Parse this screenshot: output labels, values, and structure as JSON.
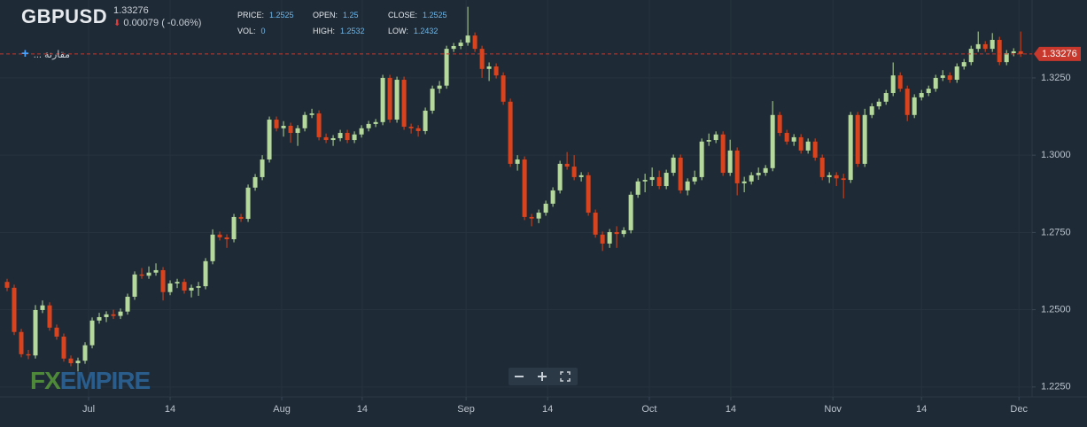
{
  "header": {
    "symbol": "GBPUSD",
    "price": "1.33276",
    "change": "0.00079 ( -0.06%)",
    "stats": [
      {
        "label": "PRICE:",
        "value": "1.2525"
      },
      {
        "label": "VOL:",
        "value": "0"
      },
      {
        "label": "OPEN:",
        "value": "1.25"
      },
      {
        "label": "HIGH:",
        "value": "1.2532"
      },
      {
        "label": "CLOSE:",
        "value": "1.2525"
      },
      {
        "label": "LOW:",
        "value": "1.2432"
      }
    ],
    "compare": "مقارنة ...",
    "logo": {
      "fx": "FX",
      "empire": "EMPIRE"
    }
  },
  "chart_data": {
    "type": "candlestick",
    "up_color": "#b5d99c",
    "down_color": "#d9441f",
    "grid": true,
    "last_price": 1.33276,
    "last_price_label": "1.33276",
    "last_price_color": "#c8382c",
    "ylim": [
      1.2218,
      1.3502
    ],
    "yticks": [
      {
        "value": 1.225,
        "label": "1.2250"
      },
      {
        "value": 1.25,
        "label": "1.2500"
      },
      {
        "value": 1.275,
        "label": "1.2750"
      },
      {
        "value": 1.3,
        "label": "1.3000"
      },
      {
        "value": 1.325,
        "label": "1.3250"
      }
    ],
    "xlim": [
      -1,
      144.6
    ],
    "xticks": [
      {
        "value": 11.5,
        "label": "Jul"
      },
      {
        "value": 23,
        "label": "14"
      },
      {
        "value": 38.75,
        "label": "Aug"
      },
      {
        "value": 50.1,
        "label": "14"
      },
      {
        "value": 64.75,
        "label": "Sep"
      },
      {
        "value": 76.25,
        "label": "14"
      },
      {
        "value": 90.6,
        "label": "Oct"
      },
      {
        "value": 102.1,
        "label": "14"
      },
      {
        "value": 116.5,
        "label": "Nov"
      },
      {
        "value": 129,
        "label": "14"
      },
      {
        "value": 142.75,
        "label": "Dec"
      }
    ],
    "candles": [
      [
        1.259,
        1.26,
        1.256,
        1.2571
      ],
      [
        1.2571,
        1.2581,
        1.2418,
        1.2428
      ],
      [
        1.2428,
        1.2438,
        1.2346,
        1.2356
      ],
      [
        1.2356,
        1.237,
        1.234,
        1.2352
      ],
      [
        1.2352,
        1.2515,
        1.2342,
        1.2499
      ],
      [
        1.2499,
        1.253,
        1.2489,
        1.2514
      ],
      [
        1.2514,
        1.2524,
        1.2432,
        1.2442
      ],
      [
        1.2442,
        1.2452,
        1.2403,
        1.2413
      ],
      [
        1.2413,
        1.2423,
        1.2332,
        1.2342
      ],
      [
        1.2342,
        1.2352,
        1.2317,
        1.2327
      ],
      [
        1.2327,
        1.2345,
        1.23,
        1.2335
      ],
      [
        1.2335,
        1.2395,
        1.2325,
        1.2385
      ],
      [
        1.2385,
        1.2475,
        1.2375,
        1.2465
      ],
      [
        1.2465,
        1.249,
        1.2455,
        1.2476
      ],
      [
        1.2476,
        1.2495,
        1.246,
        1.2485
      ],
      [
        1.2485,
        1.25,
        1.247,
        1.248
      ],
      [
        1.248,
        1.2504,
        1.247,
        1.2494
      ],
      [
        1.2494,
        1.2552,
        1.2484,
        1.2542
      ],
      [
        1.2542,
        1.2624,
        1.2532,
        1.2614
      ],
      [
        1.2614,
        1.2635,
        1.26,
        1.261
      ],
      [
        1.261,
        1.264,
        1.26,
        1.262
      ],
      [
        1.262,
        1.265,
        1.261,
        1.2628
      ],
      [
        1.2628,
        1.2638,
        1.253,
        1.2557
      ],
      [
        1.2557,
        1.2595,
        1.2547,
        1.2585
      ],
      [
        1.2585,
        1.26,
        1.257,
        1.259
      ],
      [
        1.259,
        1.26,
        1.2552,
        1.2562
      ],
      [
        1.2562,
        1.2581,
        1.254,
        1.2571
      ],
      [
        1.2571,
        1.259,
        1.2545,
        1.2576
      ],
      [
        1.2576,
        1.2667,
        1.2566,
        1.2657
      ],
      [
        1.2657,
        1.276,
        1.2647,
        1.2743
      ],
      [
        1.2743,
        1.2753,
        1.2724,
        1.2734
      ],
      [
        1.2734,
        1.2744,
        1.27,
        1.2728
      ],
      [
        1.2728,
        1.281,
        1.2718,
        1.28
      ],
      [
        1.28,
        1.281,
        1.2784,
        1.2794
      ],
      [
        1.2794,
        1.2905,
        1.2784,
        1.2895
      ],
      [
        1.2895,
        1.2939,
        1.2885,
        1.2929
      ],
      [
        1.2929,
        1.3,
        1.2919,
        1.2986
      ],
      [
        1.2986,
        1.3125,
        1.2976,
        1.3115
      ],
      [
        1.3115,
        1.3125,
        1.3077,
        1.3087
      ],
      [
        1.3087,
        1.311,
        1.306,
        1.3095
      ],
      [
        1.3095,
        1.3105,
        1.304,
        1.3072
      ],
      [
        1.3072,
        1.3097,
        1.303,
        1.3087
      ],
      [
        1.3087,
        1.314,
        1.3077,
        1.313
      ],
      [
        1.313,
        1.315,
        1.312,
        1.3135
      ],
      [
        1.3135,
        1.3145,
        1.3048,
        1.3058
      ],
      [
        1.3058,
        1.307,
        1.3039,
        1.3049
      ],
      [
        1.3049,
        1.3065,
        1.303,
        1.3055
      ],
      [
        1.3055,
        1.3082,
        1.3045,
        1.3072
      ],
      [
        1.3072,
        1.3082,
        1.3039,
        1.3049
      ],
      [
        1.3049,
        1.3077,
        1.3039,
        1.3067
      ],
      [
        1.3067,
        1.3097,
        1.3057,
        1.3087
      ],
      [
        1.3087,
        1.3111,
        1.3077,
        1.3101
      ],
      [
        1.3101,
        1.3117,
        1.3091,
        1.3107
      ],
      [
        1.3107,
        1.326,
        1.3097,
        1.325
      ],
      [
        1.325,
        1.326,
        1.3105,
        1.3115
      ],
      [
        1.3115,
        1.3254,
        1.3105,
        1.3244
      ],
      [
        1.3244,
        1.3254,
        1.3082,
        1.3092
      ],
      [
        1.3092,
        1.3102,
        1.307,
        1.3087
      ],
      [
        1.3087,
        1.3097,
        1.306,
        1.3078
      ],
      [
        1.3078,
        1.3154,
        1.3068,
        1.3144
      ],
      [
        1.3144,
        1.3225,
        1.3134,
        1.3215
      ],
      [
        1.3215,
        1.324,
        1.32,
        1.3225
      ],
      [
        1.3225,
        1.3354,
        1.3215,
        1.3344
      ],
      [
        1.3344,
        1.3363,
        1.3334,
        1.3353
      ],
      [
        1.3353,
        1.3374,
        1.3343,
        1.3364
      ],
      [
        1.3364,
        1.348,
        1.3354,
        1.3387
      ],
      [
        1.3387,
        1.3397,
        1.3334,
        1.3344
      ],
      [
        1.3344,
        1.3354,
        1.325,
        1.3279
      ],
      [
        1.3279,
        1.33,
        1.324,
        1.3287
      ],
      [
        1.3287,
        1.3297,
        1.3248,
        1.3258
      ],
      [
        1.3258,
        1.3268,
        1.3163,
        1.3173
      ],
      [
        1.3173,
        1.3183,
        1.2962,
        1.2972
      ],
      [
        1.2972,
        1.3,
        1.295,
        1.2986
      ],
      [
        1.2986,
        1.2996,
        1.279,
        1.28
      ],
      [
        1.28,
        1.281,
        1.277,
        1.2795
      ],
      [
        1.2795,
        1.2824,
        1.278,
        1.2814
      ],
      [
        1.2814,
        1.2853,
        1.2804,
        1.2843
      ],
      [
        1.2843,
        1.2896,
        1.2833,
        1.2886
      ],
      [
        1.2886,
        1.2982,
        1.2876,
        1.2972
      ],
      [
        1.2972,
        1.301,
        1.2953,
        1.2963
      ],
      [
        1.2963,
        1.3,
        1.2919,
        1.2929
      ],
      [
        1.2929,
        1.2945,
        1.2915,
        1.2935
      ],
      [
        1.2935,
        1.2945,
        1.2804,
        1.2814
      ],
      [
        1.2814,
        1.2824,
        1.2733,
        1.2743
      ],
      [
        1.2743,
        1.2753,
        1.269,
        1.2714
      ],
      [
        1.2714,
        1.2761,
        1.27,
        1.2751
      ],
      [
        1.2751,
        1.277,
        1.27,
        1.2745
      ],
      [
        1.2745,
        1.2767,
        1.2735,
        1.2757
      ],
      [
        1.2757,
        1.2882,
        1.2747,
        1.2872
      ],
      [
        1.2872,
        1.2925,
        1.2862,
        1.2915
      ],
      [
        1.2915,
        1.294,
        1.288,
        1.292
      ],
      [
        1.292,
        1.296,
        1.29,
        1.2929
      ],
      [
        1.2929,
        1.295,
        1.289,
        1.29
      ],
      [
        1.29,
        1.2953,
        1.289,
        1.2943
      ],
      [
        1.2943,
        1.3002,
        1.2933,
        1.2992
      ],
      [
        1.2992,
        1.3002,
        1.2876,
        1.2886
      ],
      [
        1.2886,
        1.2925,
        1.287,
        1.2915
      ],
      [
        1.2915,
        1.295,
        1.2905,
        1.2929
      ],
      [
        1.2929,
        1.3054,
        1.2919,
        1.3044
      ],
      [
        1.3044,
        1.307,
        1.303,
        1.3049
      ],
      [
        1.3049,
        1.3077,
        1.3039,
        1.3067
      ],
      [
        1.3067,
        1.3077,
        1.2933,
        1.2943
      ],
      [
        1.2943,
        1.305,
        1.2933,
        1.3015
      ],
      [
        1.3015,
        1.3025,
        1.287,
        1.2909
      ],
      [
        1.2909,
        1.293,
        1.288,
        1.2915
      ],
      [
        1.2915,
        1.2945,
        1.2905,
        1.2935
      ],
      [
        1.2935,
        1.296,
        1.292,
        1.2943
      ],
      [
        1.2943,
        1.2968,
        1.2933,
        1.2958
      ],
      [
        1.2958,
        1.3175,
        1.2948,
        1.313
      ],
      [
        1.313,
        1.314,
        1.3062,
        1.3072
      ],
      [
        1.3072,
        1.3082,
        1.3034,
        1.3044
      ],
      [
        1.3044,
        1.3068,
        1.303,
        1.3058
      ],
      [
        1.3058,
        1.3068,
        1.3005,
        1.3015
      ],
      [
        1.3015,
        1.3054,
        1.3005,
        1.3044
      ],
      [
        1.3044,
        1.3054,
        1.2982,
        1.2992
      ],
      [
        1.2992,
        1.3002,
        1.2919,
        1.2929
      ],
      [
        1.2929,
        1.2945,
        1.291,
        1.2935
      ],
      [
        1.2935,
        1.2945,
        1.29,
        1.2925
      ],
      [
        1.2925,
        1.294,
        1.286,
        1.292
      ],
      [
        1.292,
        1.314,
        1.291,
        1.313
      ],
      [
        1.313,
        1.314,
        1.2962,
        1.2972
      ],
      [
        1.2972,
        1.315,
        1.2962,
        1.313
      ],
      [
        1.313,
        1.3168,
        1.312,
        1.3158
      ],
      [
        1.3158,
        1.3183,
        1.3148,
        1.3173
      ],
      [
        1.3173,
        1.3211,
        1.3163,
        1.3201
      ],
      [
        1.3201,
        1.33,
        1.3191,
        1.3258
      ],
      [
        1.3258,
        1.3268,
        1.3205,
        1.3215
      ],
      [
        1.3215,
        1.3225,
        1.311,
        1.313
      ],
      [
        1.313,
        1.3197,
        1.312,
        1.3187
      ],
      [
        1.3187,
        1.3211,
        1.3177,
        1.3201
      ],
      [
        1.3201,
        1.3225,
        1.3191,
        1.3215
      ],
      [
        1.3215,
        1.326,
        1.3205,
        1.325
      ],
      [
        1.325,
        1.3275,
        1.324,
        1.3258
      ],
      [
        1.3258,
        1.3268,
        1.3234,
        1.3244
      ],
      [
        1.3244,
        1.3297,
        1.3234,
        1.3287
      ],
      [
        1.3287,
        1.3311,
        1.3277,
        1.3301
      ],
      [
        1.3301,
        1.3354,
        1.3291,
        1.3344
      ],
      [
        1.3344,
        1.34,
        1.3334,
        1.3359
      ],
      [
        1.3359,
        1.3369,
        1.3334,
        1.3344
      ],
      [
        1.3344,
        1.3395,
        1.3334,
        1.3373
      ],
      [
        1.3373,
        1.3383,
        1.3291,
        1.3301
      ],
      [
        1.3301,
        1.334,
        1.3291,
        1.333
      ],
      [
        1.333,
        1.3346,
        1.332,
        1.3336
      ],
      [
        1.3336,
        1.34,
        1.3318,
        1.33276
      ]
    ]
  }
}
